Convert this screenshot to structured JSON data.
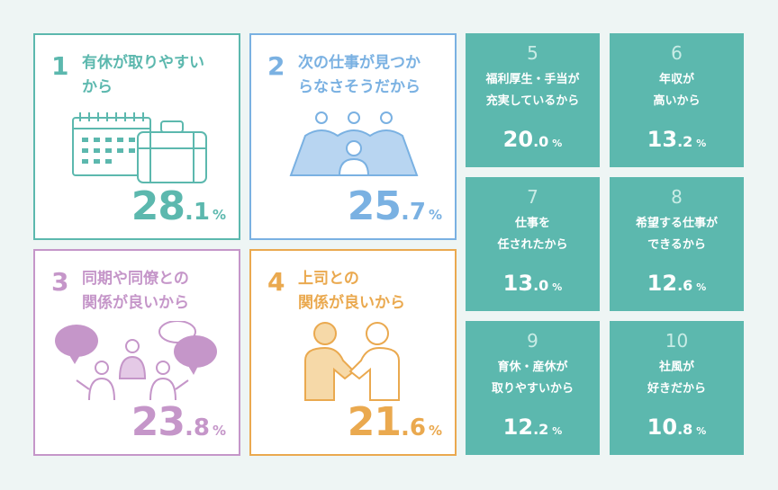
{
  "colors": {
    "background": "#eef5f4",
    "green": "#5cb8ae",
    "blue": "#7ab1e2",
    "purple": "#c596c9",
    "orange": "#eaa94f",
    "tile_number": "#c9ece6"
  },
  "large_cards": [
    {
      "rank": "1",
      "title": "有休が取りやすい\nから",
      "value_int": "28",
      "value_dec": ".1",
      "unit": "%",
      "illustration": "calendar-suitcase-icon"
    },
    {
      "rank": "2",
      "title": "次の仕事が見つか\nらなさそうだから",
      "value_int": "25",
      "value_dec": ".7",
      "unit": "%",
      "illustration": "people-group-icon"
    },
    {
      "rank": "3",
      "title": "同期や同僚との\n関係が良いから",
      "value_int": "23",
      "value_dec": ".8",
      "unit": "%",
      "illustration": "people-talking-icon"
    },
    {
      "rank": "4",
      "title": "上司との\n関係が良いから",
      "value_int": "21",
      "value_dec": ".6",
      "unit": "%",
      "illustration": "handshake-icon"
    }
  ],
  "small_tiles": [
    {
      "rank": "5",
      "title": "福利厚生・手当が\n充実しているから",
      "value_int": "20",
      "value_dec": ".0",
      "unit": "%"
    },
    {
      "rank": "6",
      "title": "年収が\n高いから",
      "value_int": "13",
      "value_dec": ".2",
      "unit": "%"
    },
    {
      "rank": "7",
      "title": "仕事を\n任されたから",
      "value_int": "13",
      "value_dec": ".0",
      "unit": "%"
    },
    {
      "rank": "8",
      "title": "希望する仕事が\nできるから",
      "value_int": "12",
      "value_dec": ".6",
      "unit": "%"
    },
    {
      "rank": "9",
      "title": "育休・産休が\n取りやすいから",
      "value_int": "12",
      "value_dec": ".2",
      "unit": "%"
    },
    {
      "rank": "10",
      "title": "社風が\n好きだから",
      "value_int": "10",
      "value_dec": ".8",
      "unit": "%"
    }
  ]
}
